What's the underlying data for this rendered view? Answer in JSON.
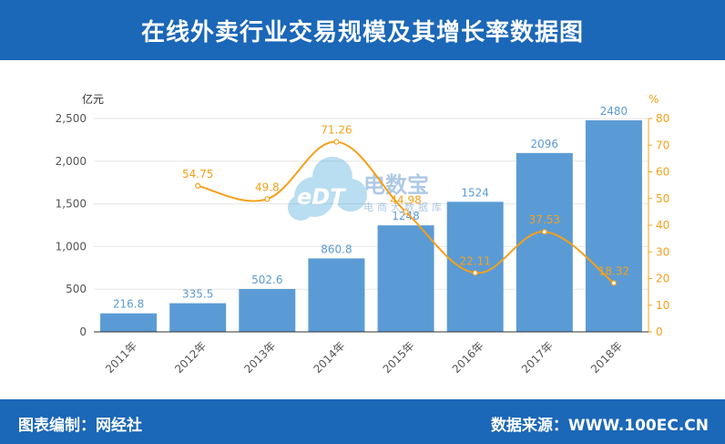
{
  "header": {
    "title": "在线外卖行业交易规模及其增长率数据图"
  },
  "footer": {
    "maker_label": "图表编制：网经社",
    "source_label": "数据来源：WWW.100EC.CN"
  },
  "watermark": {
    "logo_text": "eDT",
    "brand": "电数宝",
    "subtitle": "电商大数据库"
  },
  "colors": {
    "header_bg": "#1b67b8",
    "bar": "#5b9bd5",
    "bar_label": "#5b9bd5",
    "line": "#f5a01a",
    "line_label": "#f5a01a",
    "axis_text": "#555555"
  },
  "chart_data": {
    "type": "bar",
    "categories": [
      "2011年",
      "2012年",
      "2013年",
      "2014年",
      "2015年",
      "2016年",
      "2017年",
      "2018年"
    ],
    "series": [
      {
        "type": "bar",
        "axis": "left",
        "values": [
          216.8,
          335.5,
          502.6,
          860.8,
          1248,
          1524,
          2096,
          2480
        ],
        "labels": [
          "216.8",
          "335.5",
          "502.6",
          "860.8",
          "1248",
          "1524",
          "2096",
          "2480"
        ]
      },
      {
        "type": "line",
        "axis": "right",
        "values": [
          null,
          54.75,
          49.8,
          71.26,
          44.98,
          22.11,
          37.53,
          18.32
        ],
        "labels": [
          "",
          "54.75",
          "49.8",
          "71.26",
          "44.98",
          "22.11",
          "37.53",
          "18.32"
        ]
      }
    ],
    "left_axis": {
      "unit": "亿元",
      "ylim": [
        0,
        2500
      ],
      "ticks": [
        0,
        500,
        1000,
        1500,
        2000,
        2500
      ],
      "tick_labels": [
        "0",
        "500",
        "1,000",
        "1,500",
        "2,000",
        "2,500"
      ]
    },
    "right_axis": {
      "unit": "%",
      "ylim": [
        0,
        80
      ],
      "ticks": [
        0,
        10,
        20,
        30,
        40,
        50,
        60,
        70,
        80
      ],
      "tick_labels": [
        "0",
        "10",
        "20",
        "30",
        "40",
        "50",
        "60",
        "70",
        "80"
      ]
    },
    "grid": true,
    "legend": "none"
  }
}
